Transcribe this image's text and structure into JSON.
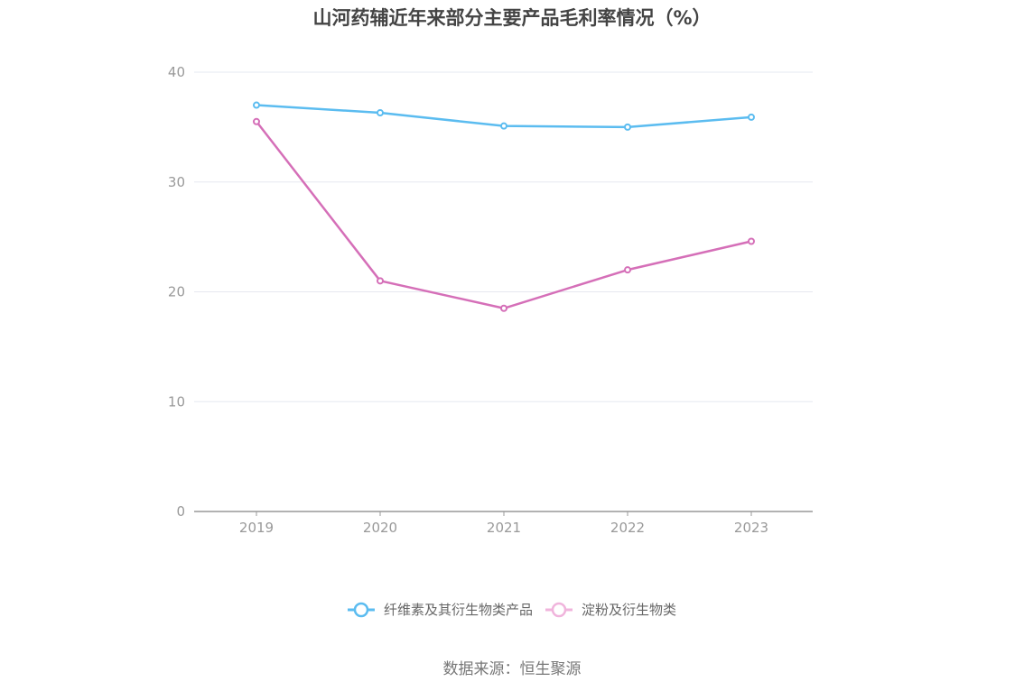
{
  "chart_data": {
    "type": "line",
    "title": "山河药辅近年来部分主要产品毛利率情况（%）",
    "categories": [
      "2019",
      "2020",
      "2021",
      "2022",
      "2023"
    ],
    "ylim": [
      0,
      40
    ],
    "yticks": [
      0,
      10,
      20,
      30,
      40
    ],
    "grid": true,
    "legend_position": "bottom",
    "series": [
      {
        "name": "纤维素及其衍生物类产品",
        "color": "#5bbcf0",
        "values": [
          37.0,
          36.3,
          35.1,
          35.0,
          35.9
        ]
      },
      {
        "name": "淀粉及衍生物类",
        "color": "#d56fb8",
        "legend_color": "#f0b4dc",
        "values": [
          35.5,
          21.0,
          18.5,
          22.0,
          24.6
        ]
      }
    ]
  },
  "source": "数据来源：恒生聚源"
}
